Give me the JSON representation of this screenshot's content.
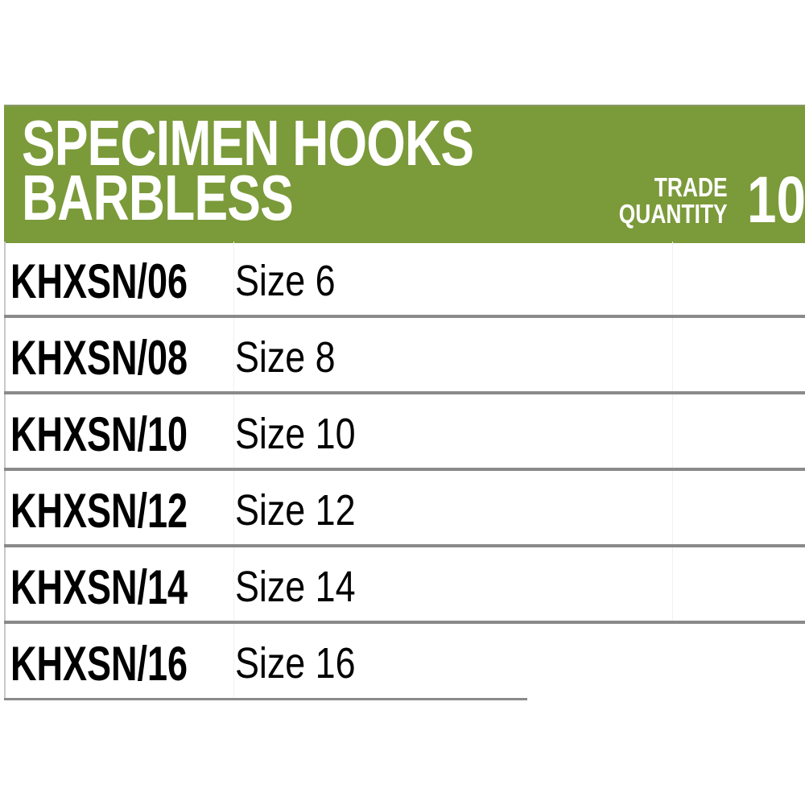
{
  "header": {
    "title_line1": "SPECIMEN HOOKS",
    "title_line2": "BARBLESS",
    "trade_label_line1": "TRADE",
    "trade_label_line2": "QUANTITY",
    "trade_quantity": "10",
    "color": "#7b9a3a"
  },
  "rows": [
    {
      "code": "KHXSN/06",
      "size": "Size 6"
    },
    {
      "code": "KHXSN/08",
      "size": "Size 8"
    },
    {
      "code": "KHXSN/10",
      "size": "Size 10"
    },
    {
      "code": "KHXSN/12",
      "size": "Size 12"
    },
    {
      "code": "KHXSN/14",
      "size": "Size 14"
    },
    {
      "code": "KHXSN/16",
      "size": "Size 16"
    }
  ]
}
